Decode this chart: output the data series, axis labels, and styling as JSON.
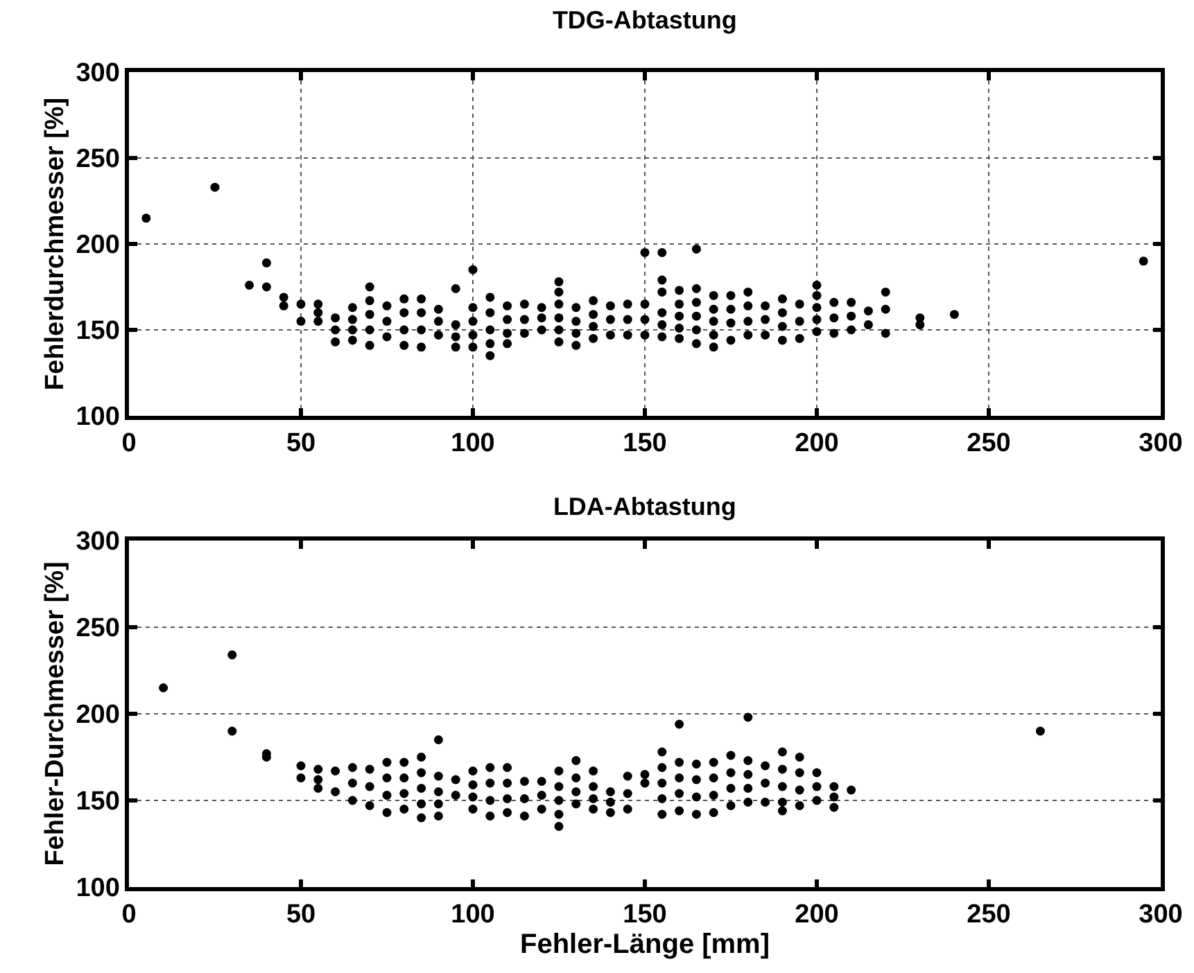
{
  "chart_data": [
    {
      "type": "scatter",
      "title": "TDG-Abtastung",
      "ylabel": "Fehlerdurchmesser [%]",
      "xlim": [
        0,
        300
      ],
      "xticks": [
        0,
        50,
        100,
        150,
        200,
        250,
        300
      ],
      "ylim": [
        100,
        300
      ],
      "yticks": [
        100,
        150,
        200,
        250,
        300
      ],
      "grid": true,
      "marker": "circle",
      "series": [
        {
          "color": "#000000",
          "x": [
            5,
            25,
            35,
            40,
            40,
            45,
            45,
            50,
            50,
            55,
            55,
            55,
            60,
            60,
            60,
            65,
            65,
            65,
            65,
            70,
            70,
            70,
            70,
            70,
            75,
            75,
            75,
            80,
            80,
            80,
            80,
            85,
            85,
            85,
            85,
            90,
            90,
            90,
            95,
            95,
            95,
            95,
            100,
            100,
            100,
            100,
            100,
            105,
            105,
            105,
            105,
            105,
            110,
            110,
            110,
            110,
            115,
            115,
            115,
            120,
            120,
            120,
            125,
            125,
            125,
            125,
            125,
            125,
            130,
            130,
            130,
            130,
            135,
            135,
            135,
            135,
            140,
            140,
            140,
            145,
            145,
            145,
            150,
            150,
            150,
            150,
            155,
            155,
            155,
            155,
            155,
            155,
            160,
            160,
            160,
            160,
            160,
            165,
            165,
            165,
            165,
            165,
            165,
            170,
            170,
            170,
            170,
            170,
            175,
            175,
            175,
            175,
            180,
            180,
            180,
            180,
            185,
            185,
            185,
            190,
            190,
            190,
            190,
            195,
            195,
            195,
            200,
            200,
            200,
            200,
            200,
            205,
            205,
            205,
            210,
            210,
            210,
            215,
            215,
            220,
            220,
            220,
            230,
            230,
            240,
            295
          ],
          "values": [
            215,
            233,
            176,
            189,
            175,
            169,
            164,
            165,
            155,
            165,
            160,
            155,
            157,
            150,
            143,
            163,
            156,
            150,
            144,
            175,
            167,
            159,
            150,
            141,
            164,
            155,
            146,
            168,
            160,
            150,
            141,
            168,
            160,
            150,
            140,
            162,
            155,
            147,
            174,
            153,
            146,
            140,
            185,
            163,
            155,
            147,
            140,
            169,
            160,
            150,
            142,
            135,
            164,
            156,
            148,
            142,
            165,
            156,
            148,
            163,
            157,
            150,
            178,
            172,
            165,
            157,
            150,
            143,
            163,
            155,
            148,
            141,
            167,
            159,
            152,
            145,
            164,
            156,
            147,
            165,
            156,
            147,
            195,
            165,
            156,
            147,
            195,
            179,
            172,
            160,
            153,
            146,
            173,
            165,
            158,
            151,
            145,
            197,
            174,
            166,
            158,
            150,
            142,
            170,
            162,
            155,
            147,
            140,
            170,
            162,
            154,
            144,
            172,
            164,
            155,
            147,
            164,
            156,
            147,
            168,
            160,
            152,
            144,
            165,
            155,
            145,
            176,
            170,
            163,
            156,
            149,
            166,
            157,
            148,
            166,
            158,
            150,
            161,
            153,
            172,
            162,
            148,
            157,
            153,
            159,
            190
          ]
        }
      ]
    },
    {
      "type": "scatter",
      "title": "LDA-Abtastung",
      "xlabel": "Fehler-Länge [mm]",
      "ylabel": "Fehler-Durchmesser [%]",
      "xlim": [
        0,
        300
      ],
      "xticks": [
        0,
        50,
        100,
        150,
        200,
        250,
        300
      ],
      "ylim": [
        100,
        300
      ],
      "yticks": [
        100,
        150,
        200,
        250,
        300
      ],
      "grid": "y",
      "marker": "circle",
      "series": [
        {
          "color": "#000000",
          "x": [
            10,
            30,
            30,
            40,
            40,
            50,
            50,
            55,
            55,
            55,
            60,
            60,
            65,
            65,
            65,
            70,
            70,
            70,
            75,
            75,
            75,
            75,
            80,
            80,
            80,
            80,
            85,
            85,
            85,
            85,
            85,
            90,
            90,
            90,
            90,
            90,
            95,
            95,
            100,
            100,
            100,
            100,
            105,
            105,
            105,
            105,
            110,
            110,
            110,
            110,
            115,
            115,
            115,
            120,
            120,
            120,
            125,
            125,
            125,
            125,
            125,
            130,
            130,
            130,
            130,
            135,
            135,
            135,
            135,
            140,
            140,
            140,
            145,
            145,
            145,
            150,
            150,
            155,
            155,
            155,
            155,
            155,
            160,
            160,
            160,
            160,
            160,
            165,
            165,
            165,
            165,
            170,
            170,
            170,
            170,
            175,
            175,
            175,
            175,
            180,
            180,
            180,
            180,
            180,
            185,
            185,
            185,
            190,
            190,
            190,
            190,
            190,
            195,
            195,
            195,
            195,
            200,
            200,
            200,
            205,
            205,
            205,
            210,
            265
          ],
          "values": [
            215,
            234,
            190,
            177,
            175,
            170,
            163,
            168,
            162,
            157,
            167,
            155,
            169,
            160,
            150,
            168,
            158,
            147,
            172,
            163,
            153,
            143,
            172,
            163,
            154,
            145,
            175,
            166,
            157,
            148,
            140,
            185,
            164,
            155,
            148,
            141,
            162,
            153,
            167,
            159,
            152,
            145,
            169,
            160,
            150,
            141,
            169,
            160,
            151,
            143,
            161,
            151,
            141,
            161,
            153,
            145,
            167,
            158,
            150,
            142,
            135,
            173,
            163,
            155,
            148,
            167,
            158,
            151,
            145,
            155,
            149,
            143,
            164,
            154,
            145,
            165,
            160,
            178,
            169,
            160,
            151,
            142,
            194,
            172,
            163,
            154,
            144,
            171,
            162,
            152,
            142,
            172,
            163,
            153,
            143,
            176,
            166,
            157,
            147,
            198,
            173,
            165,
            157,
            149,
            170,
            160,
            149,
            178,
            168,
            158,
            149,
            144,
            175,
            166,
            156,
            147,
            166,
            158,
            150,
            158,
            152,
            146,
            156,
            190
          ]
        }
      ]
    }
  ]
}
